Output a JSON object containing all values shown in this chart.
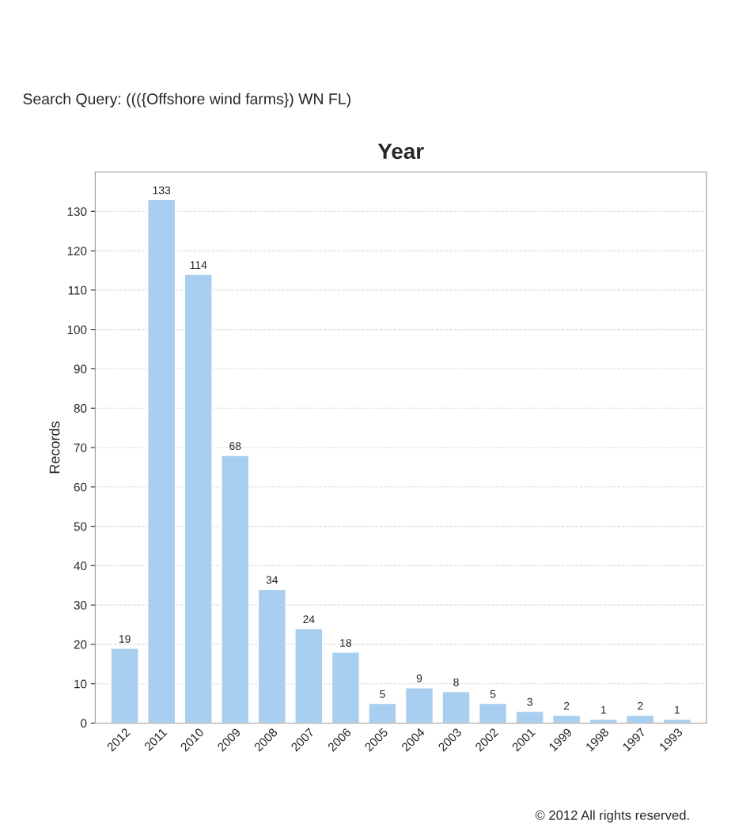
{
  "chart_data": {
    "type": "bar",
    "title": "Year",
    "subtitle": "Search Query: ((({Offshore wind farms}) WN FL)",
    "ylabel": "Records",
    "categories": [
      "2012",
      "2011",
      "2010",
      "2009",
      "2008",
      "2007",
      "2006",
      "2005",
      "2004",
      "2003",
      "2002",
      "2001",
      "1999",
      "1998",
      "1997",
      "1993"
    ],
    "values": [
      19,
      133,
      114,
      68,
      34,
      24,
      18,
      5,
      9,
      8,
      5,
      3,
      2,
      1,
      2,
      1
    ],
    "color": "#a8cff0",
    "ylim": [
      0,
      140
    ],
    "yticks": [
      0,
      10,
      20,
      30,
      40,
      50,
      60,
      70,
      80,
      90,
      100,
      110,
      120,
      130
    ],
    "grid": "y",
    "data_labels": true,
    "annotations": [
      "© 2012 All rights reserved."
    ]
  }
}
